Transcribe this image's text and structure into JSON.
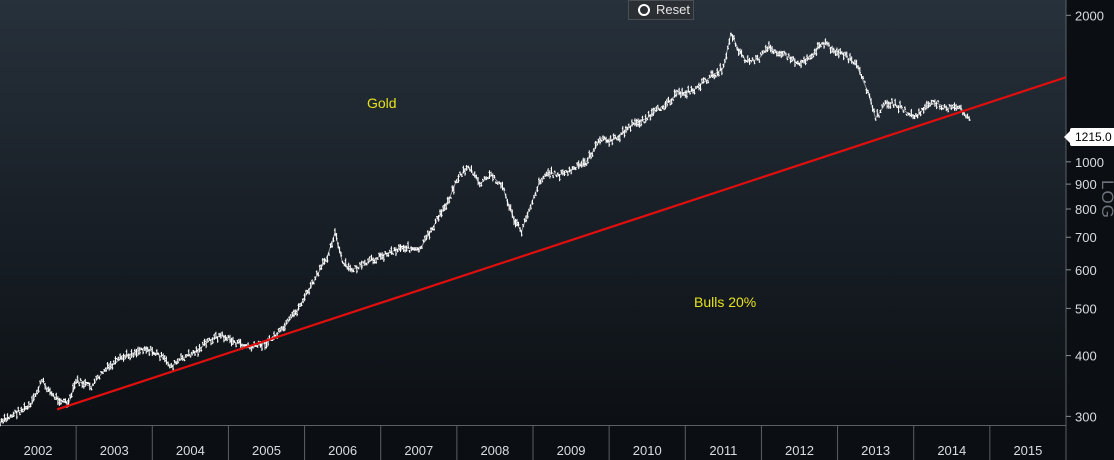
{
  "toolbar": {
    "reset_label": "Reset"
  },
  "annotations": {
    "title": "Gold",
    "bulls_label": "Bulls 20%"
  },
  "last_price_label": "1215.0",
  "scale_label": "LOG",
  "colors": {
    "price": "#ffffff",
    "trendline": "#e10e0e",
    "annotation": "#e8e21a",
    "axis_text": "#d8dde2"
  },
  "chart_data": {
    "type": "line",
    "title": "Gold",
    "yscale": "log",
    "ylim": [
      288,
      2150
    ],
    "xlim": [
      2002.0,
      2016.0
    ],
    "y_ticks": [
      300,
      400,
      500,
      600,
      700,
      800,
      900,
      1000,
      2000
    ],
    "x_ticks": [
      "2002",
      "2003",
      "2004",
      "2005",
      "2006",
      "2007",
      "2008",
      "2009",
      "2010",
      "2011",
      "2012",
      "2013",
      "2014",
      "2015"
    ],
    "last_value": 1215.0,
    "series": [
      {
        "name": "Gold price",
        "x": [
          2002.0,
          2002.2,
          2002.4,
          2002.55,
          2002.7,
          2002.9,
          2003.0,
          2003.2,
          2003.35,
          2003.6,
          2003.9,
          2004.1,
          2004.25,
          2004.4,
          2004.6,
          2004.75,
          2004.9,
          2005.1,
          2005.3,
          2005.5,
          2005.7,
          2005.9,
          2006.1,
          2006.3,
          2006.4,
          2006.5,
          2006.6,
          2006.75,
          2006.9,
          2007.1,
          2007.3,
          2007.5,
          2007.7,
          2007.9,
          2008.0,
          2008.15,
          2008.3,
          2008.45,
          2008.6,
          2008.75,
          2008.85,
          2008.95,
          2009.1,
          2009.2,
          2009.35,
          2009.5,
          2009.7,
          2009.9,
          2010.0,
          2010.1,
          2010.3,
          2010.5,
          2010.7,
          2010.9,
          2011.1,
          2011.3,
          2011.5,
          2011.6,
          2011.7,
          2011.8,
          2011.95,
          2012.1,
          2012.3,
          2012.5,
          2012.7,
          2012.8,
          2012.95,
          2013.1,
          2013.25,
          2013.4,
          2013.5,
          2013.65,
          2013.8,
          2013.95,
          2014.05,
          2014.15,
          2014.3,
          2014.45,
          2014.6,
          2014.75
        ],
        "values": [
          290,
          305,
          315,
          355,
          330,
          318,
          355,
          345,
          370,
          395,
          415,
          400,
          380,
          395,
          410,
          430,
          440,
          425,
          415,
          425,
          450,
          495,
          560,
          640,
          715,
          620,
          600,
          610,
          630,
          650,
          670,
          655,
          740,
          840,
          920,
          980,
          900,
          940,
          890,
          760,
          720,
          800,
          920,
          950,
          940,
          960,
          1000,
          1120,
          1100,
          1120,
          1190,
          1230,
          1300,
          1380,
          1400,
          1480,
          1560,
          1840,
          1700,
          1610,
          1620,
          1720,
          1660,
          1590,
          1680,
          1760,
          1700,
          1650,
          1580,
          1390,
          1230,
          1330,
          1300,
          1250,
          1240,
          1300,
          1320,
          1290,
          1290,
          1215
        ]
      },
      {
        "name": "Trend line (Bulls 20%)",
        "x": [
          2002.75,
          2016.0
        ],
        "values": [
          310,
          1492
        ]
      }
    ]
  }
}
